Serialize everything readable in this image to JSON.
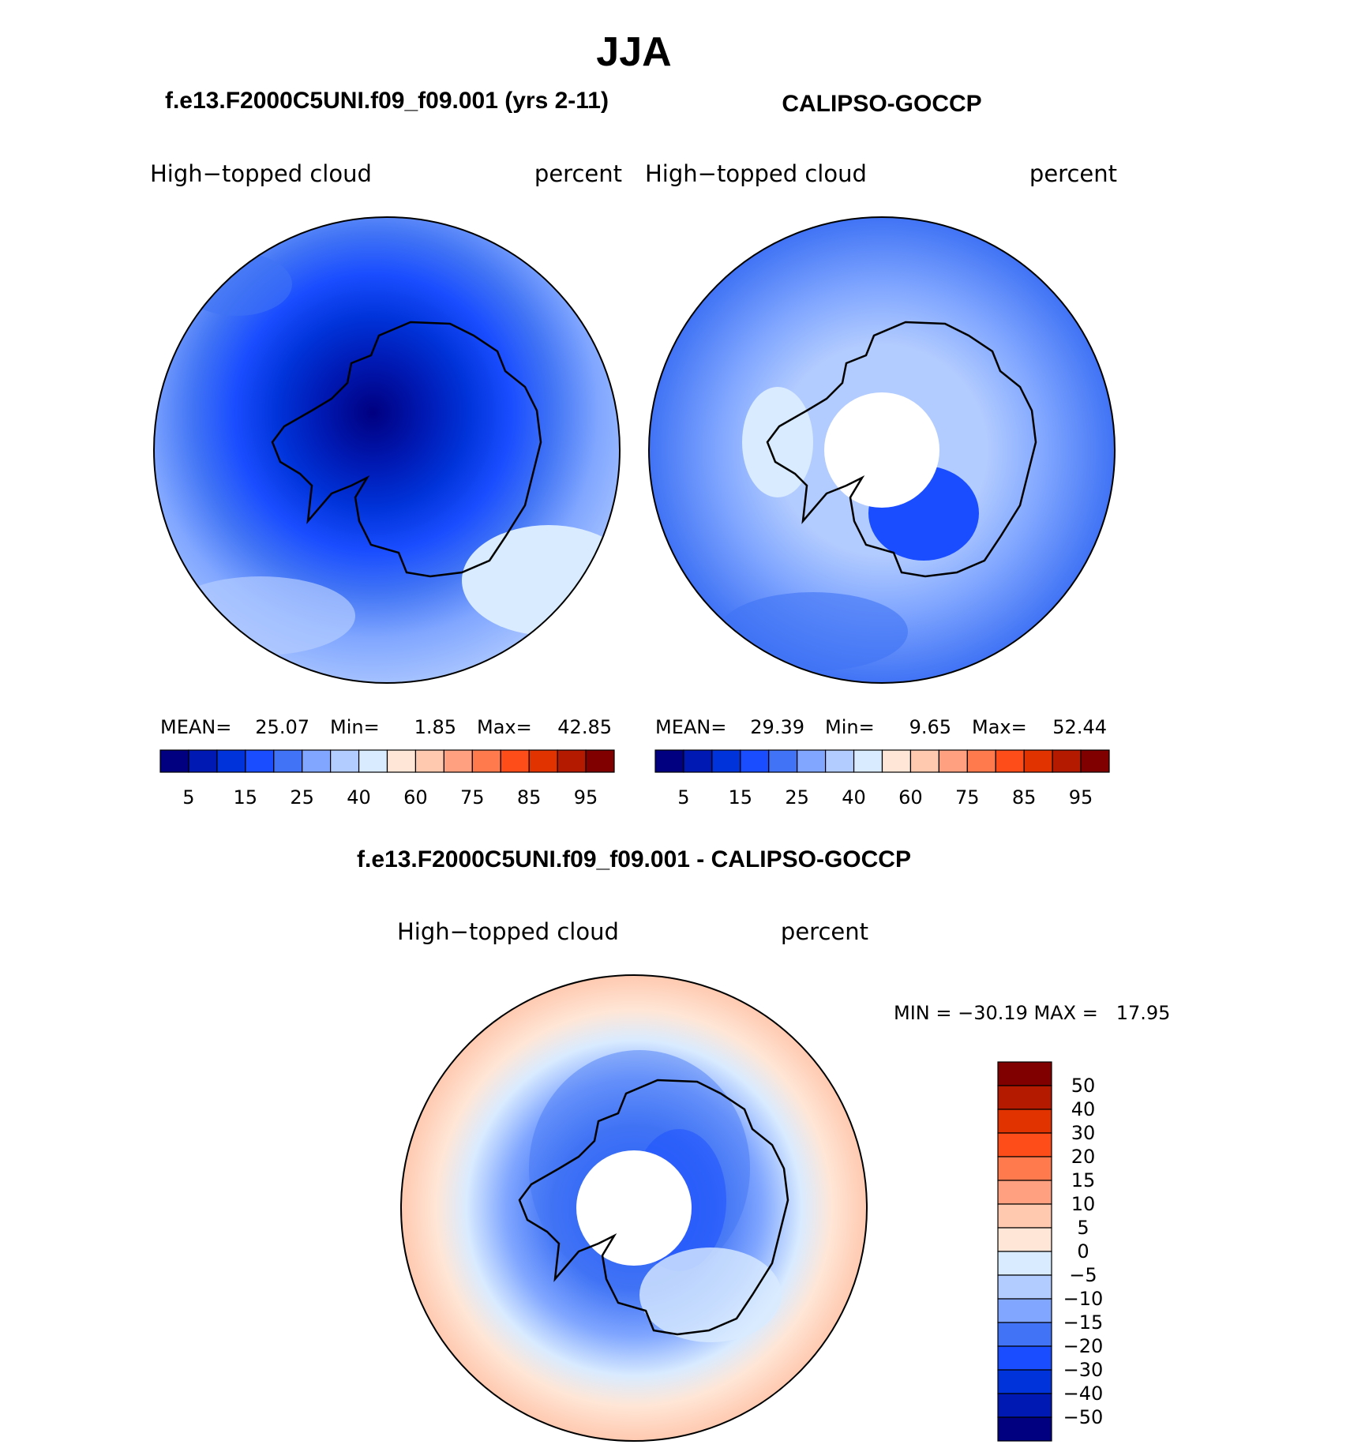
{
  "season_title": "JJA",
  "panels": [
    {
      "case_title": "f.e13.F2000C5UNI.f09_f09.001 (yrs 2-11)",
      "variable": "High−topped cloud",
      "units": "percent",
      "stats": {
        "mean_label": "MEAN=",
        "mean": "25.07",
        "min_label": "Min=",
        "min": "1.85",
        "max_label": "Max=",
        "max": "42.85"
      }
    },
    {
      "case_title": "CALIPSO-GOCCP",
      "variable": "High−topped cloud",
      "units": "percent",
      "stats": {
        "mean_label": "MEAN=",
        "mean": "29.39",
        "min_label": "Min=",
        "min": "9.65",
        "max_label": "Max=",
        "max": "52.44"
      }
    },
    {
      "case_title": "f.e13.F2000C5UNI.f09_f09.001 - CALIPSO-GOCCP",
      "variable": "High−topped cloud",
      "units": "percent",
      "stats": {
        "minmax_text": "MIN = −30.19 MAX =   17.95"
      }
    }
  ],
  "colorbar_abs": {
    "colors": [
      "#000080",
      "#0019b3",
      "#0033d9",
      "#1a4dff",
      "#4073f5",
      "#80a6ff",
      "#b3ccff",
      "#d9ebff",
      "#ffe6d6",
      "#ffc9b0",
      "#ffa080",
      "#ff7a4d",
      "#ff4d1a",
      "#e03300",
      "#b31a00",
      "#800000"
    ],
    "labels": [
      "5",
      "15",
      "25",
      "40",
      "60",
      "75",
      "85",
      "95"
    ]
  },
  "colorbar_diff": {
    "colors": [
      "#800000",
      "#b31a00",
      "#e03300",
      "#ff4d1a",
      "#ff7a4d",
      "#ffa080",
      "#ffc9b0",
      "#ffe6d6",
      "#d9ebff",
      "#b3ccff",
      "#80a6ff",
      "#4073f5",
      "#1a4dff",
      "#0033d9",
      "#0019b3",
      "#000080"
    ],
    "labels": [
      "50",
      "40",
      "30",
      "20",
      "15",
      "10",
      "5",
      "0",
      "−5",
      "−10",
      "−15",
      "−20",
      "−30",
      "−40",
      "−50"
    ]
  }
}
